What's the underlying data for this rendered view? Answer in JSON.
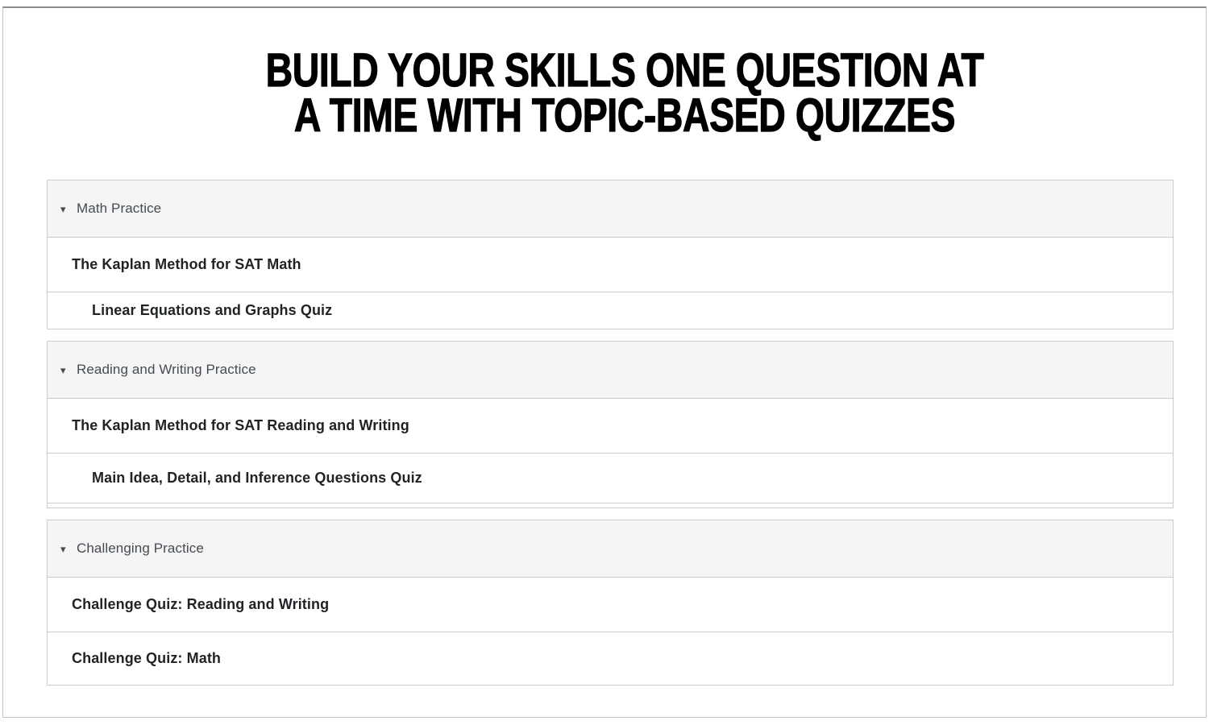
{
  "header": {
    "title_line1": "BUILD YOUR SKILLS ONE QUESTION AT",
    "title_line2": "A TIME WITH TOPIC-BASED QUIZZES"
  },
  "icons": {
    "collapse_triangle": "▾"
  },
  "colors": {
    "header_bg": "#f5f5f5",
    "panel_border": "#c7cdd1",
    "module_name_text": "#444b52",
    "item_text": "#1f2326",
    "title_text": "#000000"
  },
  "modules": [
    {
      "name": "Math Practice",
      "items": [
        {
          "label": "The Kaplan Method for SAT Math",
          "indent": 1
        },
        {
          "label": "Linear Equations and Graphs Quiz",
          "indent": 2
        }
      ]
    },
    {
      "name": "Reading and Writing Practice",
      "items": [
        {
          "label": "The Kaplan Method for SAT Reading and Writing",
          "indent": 1
        },
        {
          "label": "Main Idea, Detail, and Inference Questions Quiz",
          "indent": 2
        }
      ]
    },
    {
      "name": "Challenging Practice",
      "items": [
        {
          "label": "Challenge Quiz: Reading and Writing",
          "indent": 1
        },
        {
          "label": "Challenge Quiz: Math",
          "indent": 1
        }
      ]
    }
  ]
}
